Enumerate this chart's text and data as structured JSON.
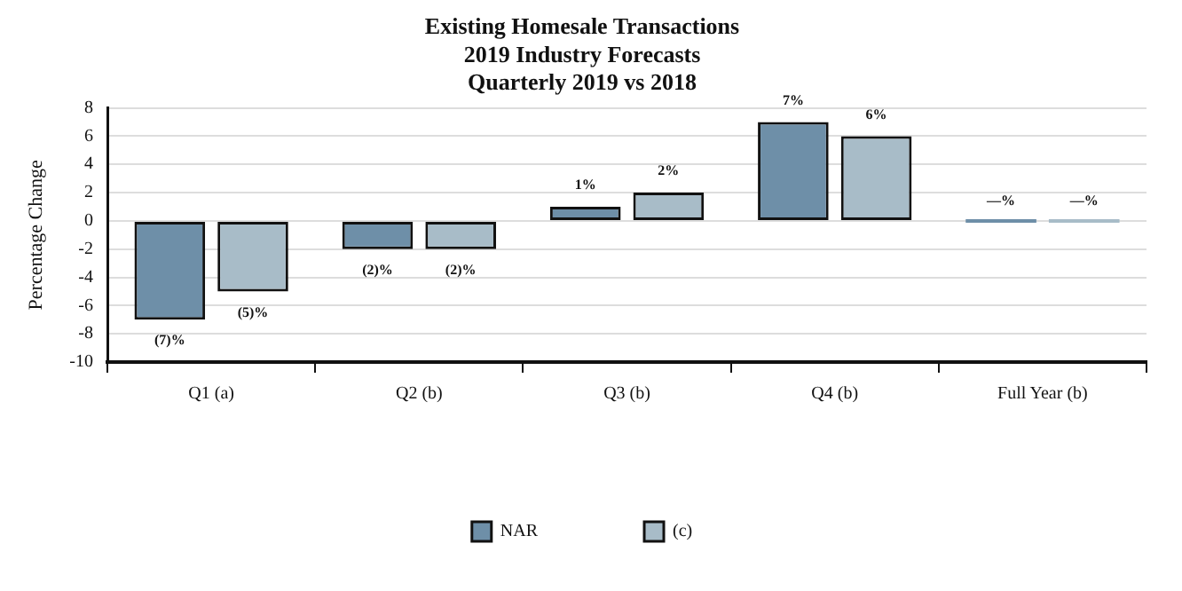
{
  "chart_data": {
    "type": "bar",
    "title": "Existing Homesale Transactions\n2019 Industry Forecasts\nQuarterly 2019 vs 2018",
    "ylabel": "Percentage Change",
    "categories": [
      "Q1 (a)",
      "Q2 (b)",
      "Q3 (b)",
      "Q4 (b)",
      "Full Year (b)"
    ],
    "series": [
      {
        "name": "NAR",
        "color": "#6e8fa8",
        "values": [
          -7,
          -2,
          1,
          7,
          0
        ],
        "value_labels": [
          "(7)%",
          "(2)%",
          "1%",
          "7%",
          "—%"
        ]
      },
      {
        "name": "(c)",
        "color": "#a8bcc8",
        "values": [
          -5,
          -2,
          2,
          6,
          0
        ],
        "value_labels": [
          "(5)%",
          "(2)%",
          "2%",
          "6%",
          "—%"
        ]
      }
    ],
    "ylim": [
      -10,
      8
    ],
    "yticks": [
      -10,
      -8,
      -6,
      -4,
      -2,
      0,
      2,
      4,
      6,
      8
    ],
    "grid": "y",
    "legend": "bottom"
  }
}
